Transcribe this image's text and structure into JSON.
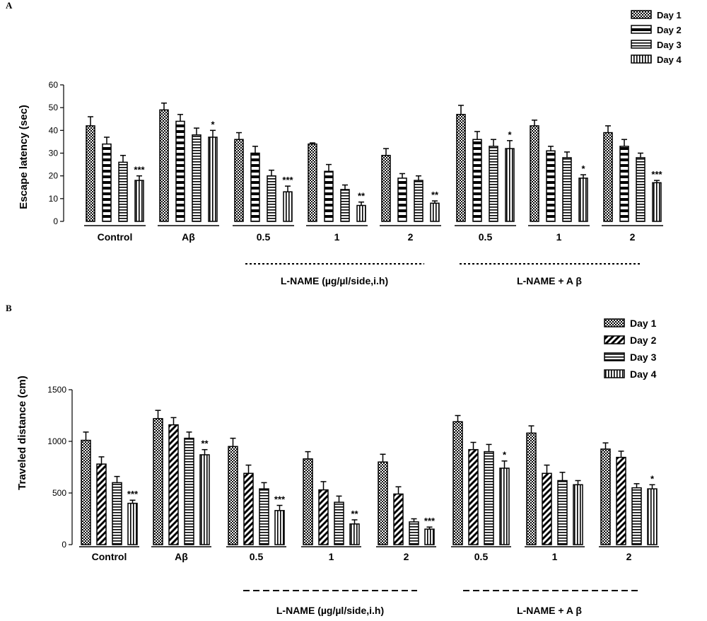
{
  "chart_data": [
    {
      "panel_label": "A",
      "type": "bar",
      "ylabel": "Escape latency (sec)",
      "ylim": [
        0,
        60
      ],
      "yticks": [
        "0",
        "10",
        "20",
        "30",
        "40",
        "50",
        "60"
      ],
      "categories": [
        "Control",
        "Aβ",
        "0.5",
        "1",
        "2",
        "0.5",
        "1",
        "2"
      ],
      "groups": [
        {
          "label": "L-NAME (µg/µl/side,i.h)",
          "category_indices": [
            2,
            3,
            4
          ]
        },
        {
          "label": "L-NAME + A β",
          "category_indices": [
            5,
            6,
            7
          ]
        }
      ],
      "series": [
        {
          "name": "Day 1",
          "pattern": "checker",
          "values": [
            42,
            49,
            36,
            34,
            29,
            47,
            42,
            39
          ],
          "errors": [
            4,
            3,
            3,
            0.5,
            3,
            4,
            2.5,
            3
          ]
        },
        {
          "name": "Day 2",
          "pattern": "hstripe-thick",
          "values": [
            34,
            44,
            30,
            22,
            19,
            36,
            31,
            33
          ],
          "errors": [
            3,
            3,
            3,
            3,
            2,
            3.5,
            2,
            3
          ]
        },
        {
          "name": "Day 3",
          "pattern": "hstripe-thin",
          "values": [
            26,
            38,
            20,
            14,
            18,
            33,
            28,
            28
          ],
          "errors": [
            3,
            3,
            2.5,
            2,
            2,
            3,
            2.5,
            2
          ]
        },
        {
          "name": "Day 4",
          "pattern": "vstripe",
          "values": [
            18,
            37,
            13,
            7,
            8,
            32,
            19,
            17
          ],
          "errors": [
            2,
            3,
            2.5,
            1.5,
            1,
            3.5,
            1.5,
            1
          ]
        }
      ],
      "annotations": [
        {
          "category": 0,
          "series": 3,
          "text": "***"
        },
        {
          "category": 1,
          "series": 3,
          "text": "*"
        },
        {
          "category": 2,
          "series": 3,
          "text": "***"
        },
        {
          "category": 3,
          "series": 3,
          "text": "**"
        },
        {
          "category": 4,
          "series": 3,
          "text": "**"
        },
        {
          "category": 5,
          "series": 3,
          "text": "*"
        },
        {
          "category": 6,
          "series": 3,
          "text": "*"
        },
        {
          "category": 7,
          "series": 3,
          "text": "***"
        }
      ],
      "legend_position": "top-right"
    },
    {
      "panel_label": "B",
      "type": "bar",
      "ylabel": "Traveled distance (cm)",
      "ylim": [
        0,
        1500
      ],
      "yticks": [
        "0",
        "500",
        "1000",
        "1500"
      ],
      "categories": [
        "Control",
        "Aβ",
        "0.5",
        "1",
        "2",
        "0.5",
        "1",
        "2"
      ],
      "groups": [
        {
          "label": "L-NAME (µg/µl/side,i.h)",
          "category_indices": [
            2,
            3,
            4
          ]
        },
        {
          "label": "L-NAME + A β",
          "category_indices": [
            5,
            6,
            7
          ]
        }
      ],
      "series": [
        {
          "name": "Day 1",
          "pattern": "checker",
          "values": [
            1010,
            1220,
            950,
            830,
            800,
            1190,
            1080,
            925
          ],
          "errors": [
            80,
            80,
            80,
            70,
            75,
            60,
            70,
            60
          ]
        },
        {
          "name": "Day 2",
          "pattern": "diagonal",
          "values": [
            780,
            1160,
            690,
            530,
            490,
            920,
            690,
            845
          ],
          "errors": [
            70,
            70,
            80,
            80,
            70,
            70,
            80,
            60
          ]
        },
        {
          "name": "Day 3",
          "pattern": "hstripe-thin",
          "values": [
            600,
            1030,
            540,
            410,
            220,
            900,
            620,
            550
          ],
          "errors": [
            60,
            60,
            60,
            60,
            30,
            70,
            80,
            40
          ]
        },
        {
          "name": "Day 4",
          "pattern": "vstripe",
          "values": [
            400,
            870,
            330,
            200,
            150,
            740,
            580,
            540
          ],
          "errors": [
            30,
            50,
            50,
            40,
            20,
            70,
            40,
            40
          ]
        }
      ],
      "annotations": [
        {
          "category": 0,
          "series": 3,
          "text": "***"
        },
        {
          "category": 1,
          "series": 3,
          "text": "**"
        },
        {
          "category": 2,
          "series": 3,
          "text": "***"
        },
        {
          "category": 3,
          "series": 3,
          "text": "**"
        },
        {
          "category": 4,
          "series": 3,
          "text": "***"
        },
        {
          "category": 5,
          "series": 3,
          "text": "*"
        },
        {
          "category": 7,
          "series": 3,
          "text": "*"
        }
      ],
      "legend_position": "top-right"
    }
  ]
}
